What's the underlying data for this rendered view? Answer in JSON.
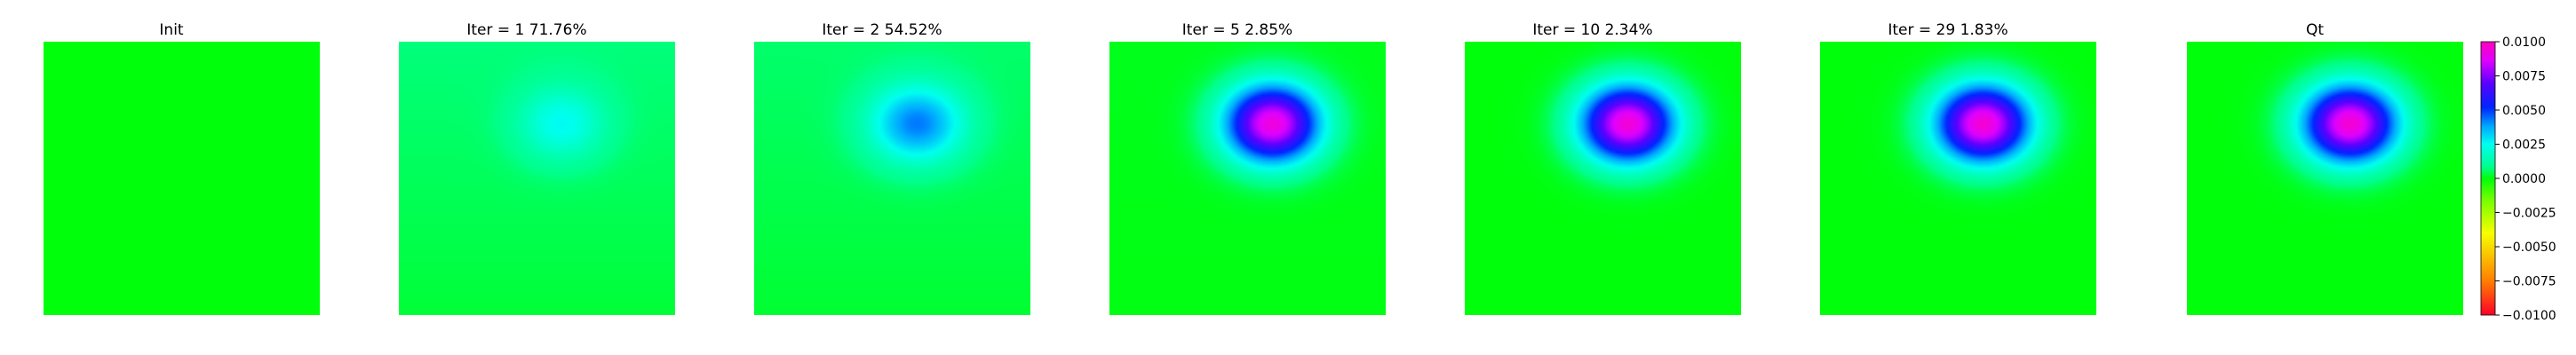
{
  "chart_data": {
    "type": "heatmap",
    "panels": [
      {
        "title": "Init",
        "blob_amplitude": 0.0,
        "blob_center": [
          0.59,
          0.3
        ],
        "blob_sigma": [
          0.11,
          0.095
        ],
        "background": 0.0
      },
      {
        "title": "Iter = 1    71.76%",
        "blob_amplitude": 0.002,
        "blob_center": [
          0.59,
          0.3
        ],
        "blob_sigma": [
          0.11,
          0.095
        ],
        "background": 0.0007
      },
      {
        "title": "Iter = 2    54.52%",
        "blob_amplitude": 0.0038,
        "blob_center": [
          0.59,
          0.3
        ],
        "blob_sigma": [
          0.12,
          0.1
        ],
        "background": 0.0006
      },
      {
        "title": "Iter = 5    2.85%",
        "blob_amplitude": 0.0092,
        "blob_center": [
          0.59,
          0.3
        ],
        "blob_sigma": [
          0.12,
          0.1
        ],
        "background": 0.0001
      },
      {
        "title": "Iter = 10    2.34%",
        "blob_amplitude": 0.0094,
        "blob_center": [
          0.59,
          0.3
        ],
        "blob_sigma": [
          0.12,
          0.1
        ],
        "background": 0.0
      },
      {
        "title": "Iter = 29    1.83%",
        "blob_amplitude": 0.0095,
        "blob_center": [
          0.59,
          0.3
        ],
        "blob_sigma": [
          0.12,
          0.1
        ],
        "background": 0.0
      },
      {
        "title": "Qt",
        "blob_amplitude": 0.0095,
        "blob_center": [
          0.59,
          0.3
        ],
        "blob_sigma": [
          0.12,
          0.1
        ],
        "background": 0.0
      }
    ],
    "colorbar": {
      "range": [
        -0.01,
        0.01
      ],
      "ticks": [
        {
          "value": 0.01,
          "label": "0.0100"
        },
        {
          "value": 0.0075,
          "label": "0.0075"
        },
        {
          "value": 0.005,
          "label": "0.0050"
        },
        {
          "value": 0.0025,
          "label": "0.0025"
        },
        {
          "value": 0.0,
          "label": "0.0000"
        },
        {
          "value": -0.0025,
          "label": "−0.0025"
        },
        {
          "value": -0.005,
          "label": "−0.0050"
        },
        {
          "value": -0.0075,
          "label": "−0.0075"
        },
        {
          "value": -0.01,
          "label": "−0.0100"
        }
      ],
      "colormap": "gist_rainbow",
      "colormap_stops": [
        "#ff0029",
        "#ff7e00",
        "#f6ff00",
        "#76ff00",
        "#00ff0b",
        "#00ff8b",
        "#00fff0",
        "#00a8ff",
        "#0024ff",
        "#5c00ff",
        "#df00ff",
        "#ff00bf"
      ]
    },
    "grid": false,
    "legend": "none"
  }
}
